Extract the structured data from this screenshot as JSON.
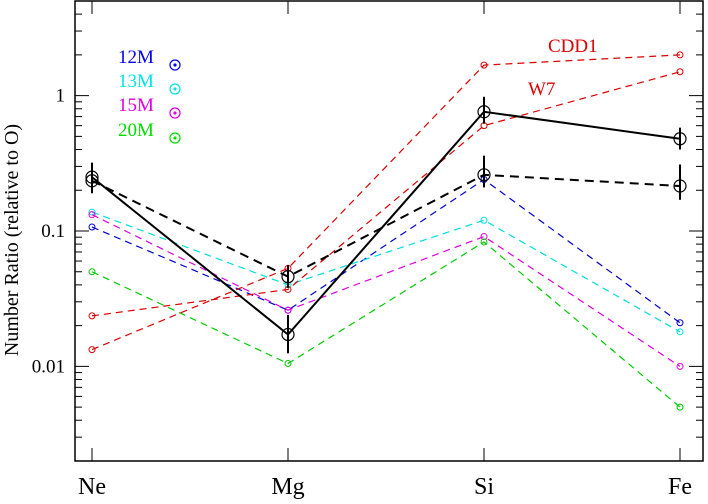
{
  "chart_data": {
    "type": "line",
    "ylabel": "Number Ratio (relative to O)",
    "yscale": "log",
    "ylim": [
      0.002,
      5
    ],
    "categories": [
      "Ne",
      "Mg",
      "Si",
      "Fe"
    ],
    "yticks": [
      {
        "value": 0.01,
        "label": "0.01"
      },
      {
        "value": 0.1,
        "label": "0.1"
      },
      {
        "value": 1,
        "label": "1"
      }
    ],
    "legend": [
      {
        "text": "12M",
        "color": "#0000ee"
      },
      {
        "text": "13M",
        "color": "#00e5e5"
      },
      {
        "text": "15M",
        "color": "#e000e0"
      },
      {
        "text": "20M",
        "color": "#00dd00"
      }
    ],
    "annotations": [
      {
        "text": "CDD1",
        "color": "#dd0000"
      },
      {
        "text": "W7",
        "color": "#dd0000"
      }
    ],
    "series": [
      {
        "color": "#0000cc",
        "style": "dashed",
        "marker": "circle",
        "values": [
          0.107,
          0.026,
          0.24,
          0.021
        ]
      },
      {
        "color": "#00dddd",
        "style": "dashed",
        "marker": "circle",
        "values": [
          0.138,
          0.04,
          0.12,
          0.018
        ]
      },
      {
        "color": "#dd00dd",
        "style": "dashed",
        "marker": "circle",
        "values": [
          0.132,
          0.026,
          0.091,
          0.01
        ]
      },
      {
        "color": "#00cc00",
        "style": "dashed",
        "marker": "circle",
        "values": [
          0.05,
          0.0105,
          0.083,
          0.005
        ]
      },
      {
        "color": "#dd0000",
        "style": "dashed",
        "marker": "circle",
        "values": [
          0.0133,
          0.053,
          1.68,
          2.0
        ]
      },
      {
        "color": "#dd0000",
        "style": "dashed",
        "marker": "circle",
        "values": [
          0.0236,
          0.037,
          0.6,
          1.5
        ]
      },
      {
        "color": "#000000",
        "style": "solid",
        "marker": "circle",
        "values": [
          0.25,
          0.0172,
          0.76,
          0.48
        ],
        "errors_lo": [
          0.21,
          0.0125,
          0.62,
          0.4
        ],
        "errors_hi": [
          0.32,
          0.024,
          0.98,
          0.58
        ]
      },
      {
        "color": "#000000",
        "style": "dashed",
        "marker": "circle",
        "values": [
          0.235,
          0.046,
          0.26,
          0.215
        ],
        "errors_lo": [
          0.19,
          0.038,
          0.21,
          0.17
        ],
        "errors_hi": [
          0.3,
          0.056,
          0.36,
          0.31
        ]
      }
    ]
  }
}
